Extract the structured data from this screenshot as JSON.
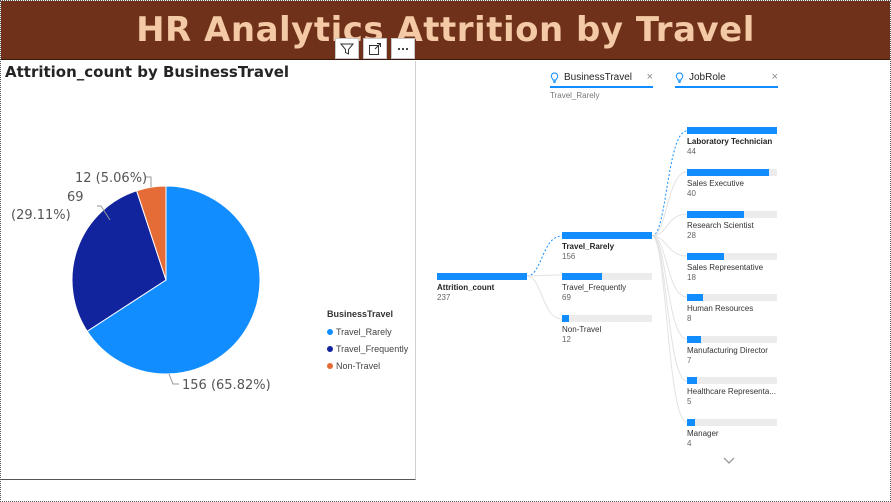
{
  "header": {
    "title": "HR Analytics Attrition by Travel"
  },
  "visual_header_icons": [
    "filter-icon",
    "focus-mode-icon",
    "more-options-icon"
  ],
  "pie_chart": {
    "title": "Attrition_count by BusinessTravel",
    "legend_title": "BusinessTravel",
    "labels": {
      "rarely": "156 (65.82%)",
      "frequently_value": "69",
      "frequently_pct": "(29.11%)",
      "non_travel": "12 (5.06%)"
    }
  },
  "decomp_tree": {
    "levels": [
      {
        "name": "BusinessTravel",
        "selected": "Travel_Rarely"
      },
      {
        "name": "JobRole",
        "selected": ""
      }
    ],
    "root": {
      "label": "Attrition_count",
      "value": "237"
    },
    "travel_nodes": [
      {
        "label": "Travel_Rarely",
        "value": "156"
      },
      {
        "label": "Travel_Frequently",
        "value": "69"
      },
      {
        "label": "Non-Travel",
        "value": "12"
      }
    ],
    "jobrole_nodes": [
      {
        "label": "Laboratory Technician",
        "value": "44"
      },
      {
        "label": "Sales Executive",
        "value": "40"
      },
      {
        "label": "Research Scientist",
        "value": "28"
      },
      {
        "label": "Sales Representative",
        "value": "18"
      },
      {
        "label": "Human Resources",
        "value": "8"
      },
      {
        "label": "Manufacturing Director",
        "value": "7"
      },
      {
        "label": "Healthcare Representa...",
        "value": "5"
      },
      {
        "label": "Manager",
        "value": "4"
      }
    ]
  },
  "colors": {
    "title_bg": "#6f3119",
    "title_fg": "#f4c9a6",
    "travel_rarely": "#118dff",
    "travel_frequently": "#12239e",
    "non_travel": "#e66c37",
    "bar": "#118dff",
    "bar_track": "#ececec"
  },
  "chart_data": [
    {
      "type": "pie",
      "title": "Attrition_count by BusinessTravel",
      "legend_title": "BusinessTravel",
      "legend_position": "right",
      "categories": [
        "Travel_Rarely",
        "Travel_Frequently",
        "Non-Travel"
      ],
      "values": [
        156,
        69,
        12
      ],
      "percent": [
        65.82,
        29.11,
        5.06
      ]
    },
    {
      "type": "bar",
      "title": "Decomposition tree: Attrition_count (237) → BusinessTravel → JobRole (Travel_Rarely)",
      "categories": [
        "Laboratory Technician",
        "Sales Executive",
        "Research Scientist",
        "Sales Representative",
        "Human Resources",
        "Manufacturing Director",
        "Healthcare Representa...",
        "Manager"
      ],
      "values": [
        44,
        40,
        28,
        18,
        8,
        7,
        5,
        4
      ]
    }
  ]
}
